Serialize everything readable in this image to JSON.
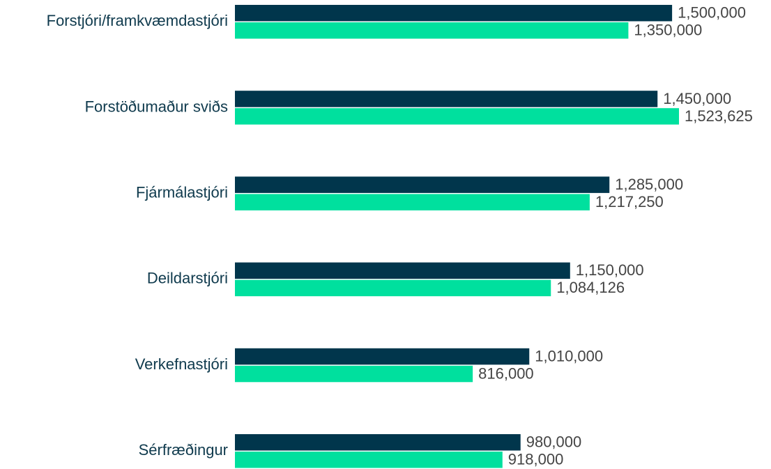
{
  "chart_data": {
    "type": "bar",
    "orientation": "horizontal",
    "categories": [
      "Forstjóri/framkvæmdastjóri",
      "Forstöðumaður sviðs",
      "Fjármálastjóri",
      "Deildarstjóri",
      "Verkefnastjóri",
      "Sérfræðingur"
    ],
    "series": [
      {
        "color": "#01364c",
        "values": [
          1500000,
          1450000,
          1285000,
          1150000,
          1010000,
          980000
        ],
        "value_labels": [
          "1,500,000",
          "1,450,000",
          "1,285,000",
          "1,150,000",
          "1,010,000",
          "980,000"
        ]
      },
      {
        "color": "#00e09e",
        "values": [
          1350000,
          1523625,
          1217250,
          1084126,
          816000,
          918000
        ],
        "value_labels": [
          "1,350,000",
          "1,523,625",
          "1,217,250",
          "1,084,126",
          "816,000",
          "918,000"
        ]
      }
    ]
  }
}
